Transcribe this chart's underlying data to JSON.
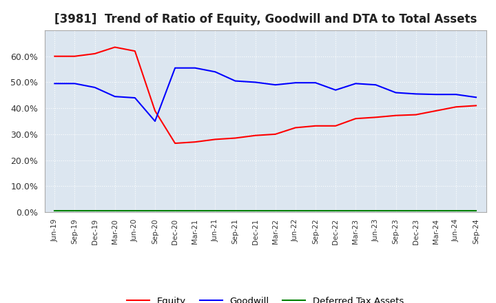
{
  "title": "[3981]  Trend of Ratio of Equity, Goodwill and DTA to Total Assets",
  "x_labels": [
    "Jun-19",
    "Sep-19",
    "Dec-19",
    "Mar-20",
    "Jun-20",
    "Sep-20",
    "Dec-20",
    "Mar-21",
    "Jun-21",
    "Sep-21",
    "Dec-21",
    "Mar-22",
    "Jun-22",
    "Sep-22",
    "Dec-22",
    "Mar-23",
    "Jun-23",
    "Sep-23",
    "Dec-23",
    "Mar-24",
    "Jun-24",
    "Sep-24"
  ],
  "equity": [
    0.6,
    0.6,
    0.61,
    0.635,
    0.62,
    0.39,
    0.265,
    0.27,
    0.28,
    0.285,
    0.295,
    0.3,
    0.325,
    0.332,
    0.332,
    0.36,
    0.365,
    0.372,
    0.375,
    0.39,
    0.405,
    0.41
  ],
  "goodwill": [
    0.495,
    0.495,
    0.48,
    0.445,
    0.44,
    0.35,
    0.555,
    0.555,
    0.54,
    0.505,
    0.5,
    0.49,
    0.498,
    0.498,
    0.47,
    0.495,
    0.49,
    0.46,
    0.455,
    0.453,
    0.453,
    0.442
  ],
  "dta": [
    0.005,
    0.005,
    0.005,
    0.005,
    0.005,
    0.005,
    0.005,
    0.005,
    0.005,
    0.005,
    0.005,
    0.005,
    0.005,
    0.005,
    0.005,
    0.005,
    0.005,
    0.005,
    0.005,
    0.005,
    0.005,
    0.005
  ],
  "equity_color": "#ff0000",
  "goodwill_color": "#0000ff",
  "dta_color": "#008000",
  "background_color": "#ffffff",
  "plot_bg_color": "#dce6f0",
  "grid_color": "#ffffff",
  "ylim": [
    0.0,
    0.7
  ],
  "yticks": [
    0.0,
    0.1,
    0.2,
    0.3,
    0.4,
    0.5,
    0.6
  ],
  "title_fontsize": 12,
  "legend_labels": [
    "Equity",
    "Goodwill",
    "Deferred Tax Assets"
  ]
}
